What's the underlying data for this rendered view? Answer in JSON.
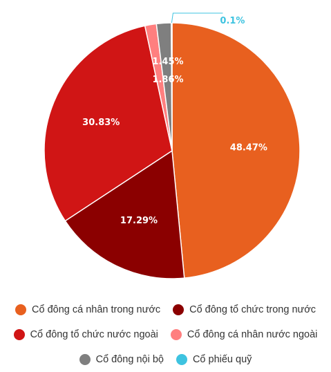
{
  "chart_data": {
    "type": "pie",
    "title": "",
    "slices": [
      {
        "name": "Cổ đông cá nhân trong nước",
        "value": 48.47,
        "label": "48.47%",
        "color": "#e8601f"
      },
      {
        "name": "Cổ đông tổ chức trong nước",
        "value": 17.29,
        "label": "17.29%",
        "color": "#8b0000"
      },
      {
        "name": "Cổ đông tổ chức nước ngoài",
        "value": 30.83,
        "label": "30.83%",
        "color": "#d01515"
      },
      {
        "name": "Cổ đông cá nhân nước ngoài",
        "value": 1.45,
        "label": "1.45%",
        "color": "#ff7f7f"
      },
      {
        "name": "Cổ đông nội bộ",
        "value": 1.86,
        "label": "1.86%",
        "color": "#7f7f7f"
      },
      {
        "name": "Cổ phiếu quỹ",
        "value": 0.1,
        "label": "0.1%",
        "color": "#3ec3e0"
      }
    ],
    "legend_position": "bottom"
  }
}
